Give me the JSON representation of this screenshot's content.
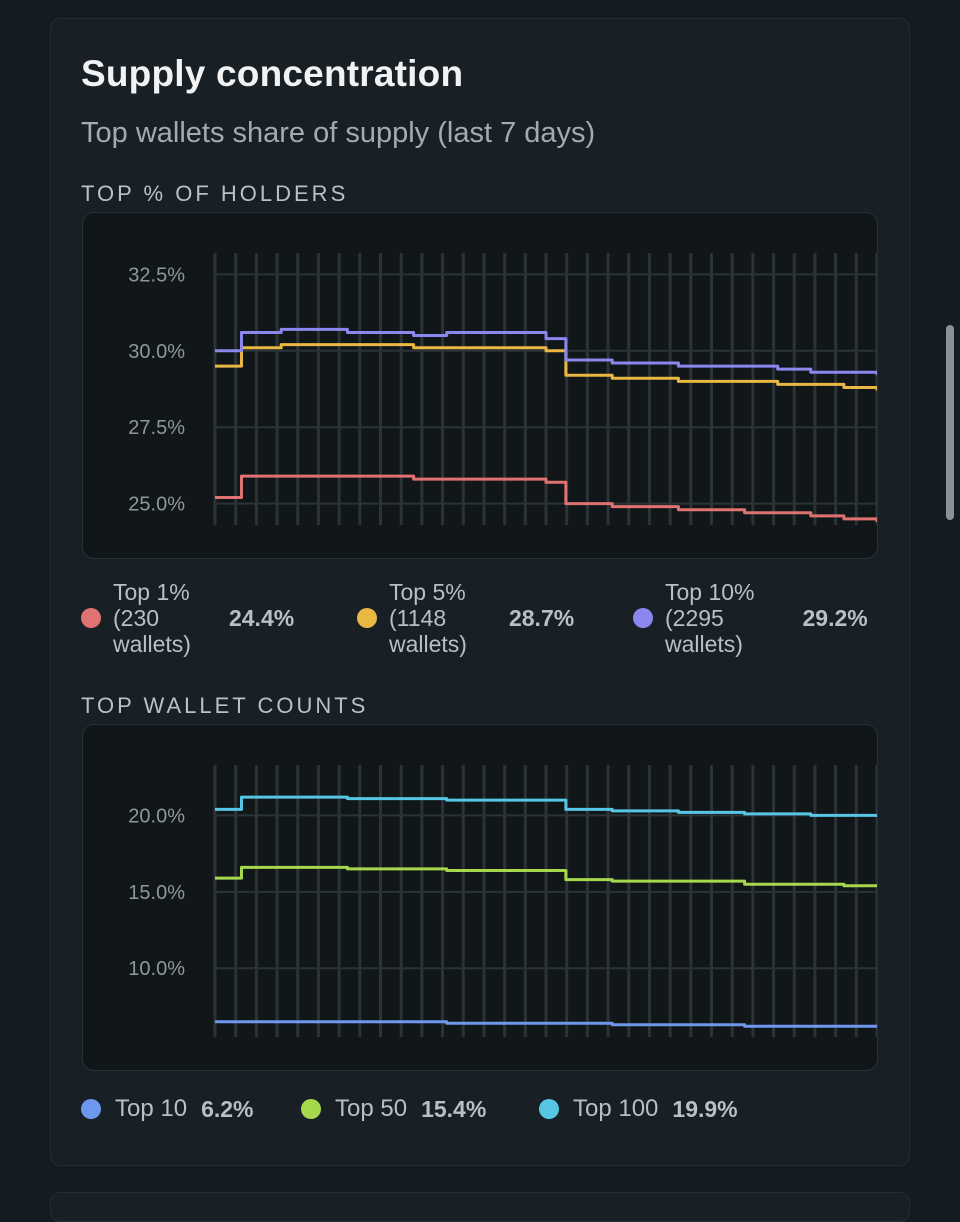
{
  "card": {
    "title": "Supply concentration",
    "subtitle": "Top wallets share of supply (last 7 days)"
  },
  "holders_section": {
    "label": "TOP % OF HOLDERS",
    "legend": [
      {
        "name": "Top 1%\n(230\nwallets)",
        "value": "24.4%",
        "color": "#e07272"
      },
      {
        "name": "Top 5%\n(1148\nwallets)",
        "value": "28.7%",
        "color": "#e8b842"
      },
      {
        "name": "Top 10%\n(2295\nwallets)",
        "value": "29.2%",
        "color": "#8a87ee"
      }
    ]
  },
  "counts_section": {
    "label": "TOP WALLET COUNTS",
    "legend": [
      {
        "name": "Top 10",
        "value": "6.2%",
        "color": "#6e97ee"
      },
      {
        "name": "Top 50",
        "value": "15.4%",
        "color": "#a6d84e"
      },
      {
        "name": "Top 100",
        "value": "19.9%",
        "color": "#56c6e4"
      }
    ]
  },
  "chart_data": [
    {
      "type": "line",
      "title": "TOP % OF HOLDERS",
      "ylim": [
        24.3,
        33.2
      ],
      "yticks": [
        "32.5%",
        "30.0%",
        "27.5%",
        "25.0%"
      ],
      "ytick_values": [
        32.5,
        30.0,
        27.5,
        25.0
      ],
      "grid": true,
      "x": [
        0,
        0.03,
        0.04,
        0.1,
        0.2,
        0.3,
        0.35,
        0.5,
        0.52,
        0.53,
        0.55,
        0.6,
        0.7,
        0.8,
        0.85,
        0.9,
        0.95,
        1.0
      ],
      "series": [
        {
          "name": "Top 1% (230 wallets)",
          "color": "#e07272",
          "values": [
            25.2,
            25.2,
            25.9,
            25.9,
            25.9,
            25.8,
            25.8,
            25.7,
            25.7,
            25.0,
            25.0,
            24.9,
            24.8,
            24.7,
            24.7,
            24.6,
            24.5,
            24.4
          ]
        },
        {
          "name": "Top 5% (1148 wallets)",
          "color": "#e8b842",
          "values": [
            29.5,
            29.5,
            30.1,
            30.2,
            30.2,
            30.1,
            30.1,
            30.0,
            30.0,
            29.2,
            29.2,
            29.1,
            29.0,
            29.0,
            28.9,
            28.9,
            28.8,
            28.7
          ]
        },
        {
          "name": "Top 10% (2295 wallets)",
          "color": "#8a87ee",
          "values": [
            30.0,
            30.0,
            30.6,
            30.7,
            30.6,
            30.5,
            30.6,
            30.4,
            30.4,
            29.7,
            29.7,
            29.6,
            29.5,
            29.5,
            29.4,
            29.3,
            29.3,
            29.2
          ]
        }
      ]
    },
    {
      "type": "line",
      "title": "TOP WALLET COUNTS",
      "ylim": [
        5.5,
        23.3
      ],
      "yticks": [
        "20.0%",
        "15.0%",
        "10.0%"
      ],
      "ytick_values": [
        20.0,
        15.0,
        10.0
      ],
      "grid": true,
      "x": [
        0,
        0.03,
        0.04,
        0.1,
        0.2,
        0.3,
        0.35,
        0.5,
        0.52,
        0.53,
        0.55,
        0.6,
        0.7,
        0.8,
        0.85,
        0.9,
        0.95,
        1.0
      ],
      "series": [
        {
          "name": "Top 10",
          "color": "#6e97ee",
          "values": [
            6.5,
            6.5,
            6.5,
            6.5,
            6.5,
            6.5,
            6.4,
            6.4,
            6.4,
            6.4,
            6.4,
            6.3,
            6.3,
            6.2,
            6.2,
            6.2,
            6.2,
            6.2
          ]
        },
        {
          "name": "Top 50",
          "color": "#a6d84e",
          "values": [
            15.9,
            15.9,
            16.6,
            16.6,
            16.5,
            16.5,
            16.4,
            16.4,
            16.4,
            15.8,
            15.8,
            15.7,
            15.7,
            15.5,
            15.5,
            15.5,
            15.4,
            15.4
          ]
        },
        {
          "name": "Top 100",
          "color": "#56c6e4",
          "values": [
            20.4,
            20.4,
            21.2,
            21.2,
            21.1,
            21.1,
            21.0,
            21.0,
            21.0,
            20.4,
            20.4,
            20.3,
            20.2,
            20.1,
            20.1,
            20.0,
            20.0,
            19.9
          ]
        }
      ]
    }
  ]
}
